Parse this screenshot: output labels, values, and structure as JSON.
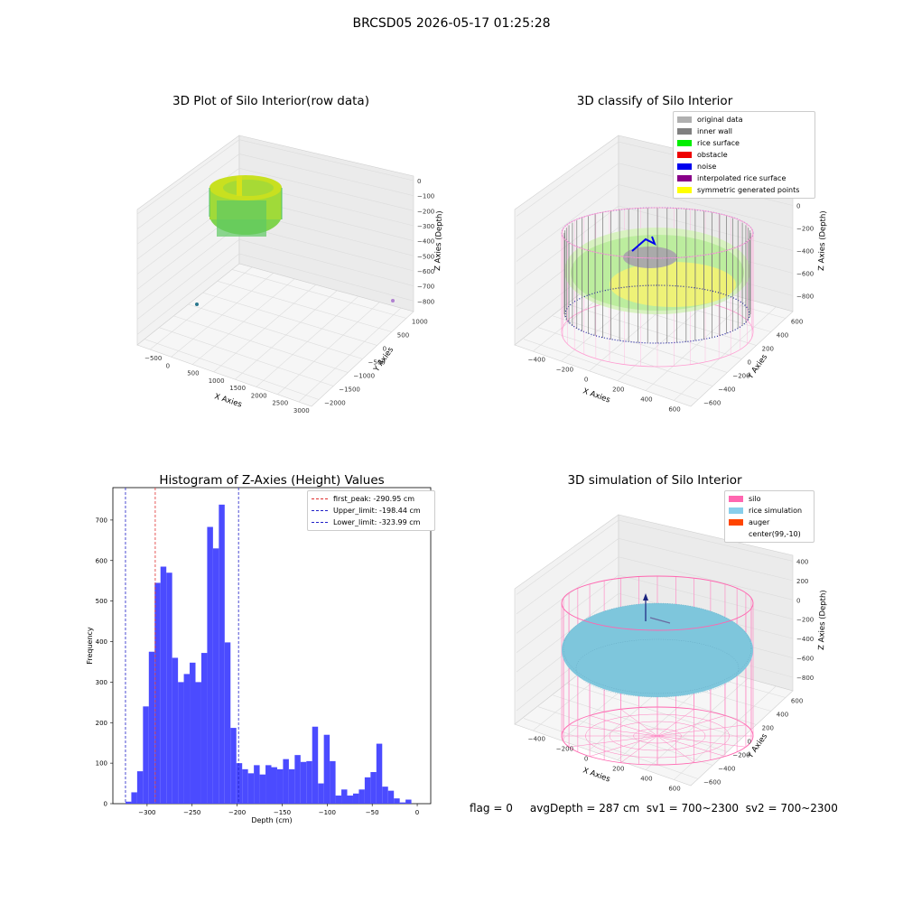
{
  "suptitle": "BRCSD05 2026-05-17 01:25:28",
  "footer": "flag = 0     avgDepth = 287 cm  sv1 = 700~2300  sv2 = 700~2300",
  "colors": {
    "histogram_bar": "#4b4bff",
    "first_peak_line": "#e03030",
    "limit_lines": "#2020c8",
    "silo_wire": "#ff66b0",
    "rice_surface": "#7ec6dc"
  },
  "chart_data": [
    {
      "type": "scatter3d",
      "title": "3D Plot of Silo Interior(row data)",
      "xlabel": "X Axies",
      "ylabel": "Y Axies",
      "zlabel": "Z Axies (Depth)",
      "xticks": [
        "−500",
        "0",
        "500",
        "1000",
        "1500",
        "2000",
        "2500",
        "3000"
      ],
      "yticks": [
        "−2000",
        "−1500",
        "−1000",
        "−500",
        "0",
        "500",
        "1000"
      ],
      "zticks": [
        "0",
        "−100",
        "−200",
        "−300",
        "−400",
        "−500",
        "−600",
        "−700",
        "−800"
      ]
    },
    {
      "type": "scatter3d",
      "title": "3D classify of Silo Interior",
      "xlabel": "X Axies",
      "ylabel": "Y Axies",
      "zlabel": "Z Axies (Depth)",
      "xticks": [
        "−400",
        "−200",
        "0",
        "200",
        "400",
        "600"
      ],
      "yticks": [
        "−600",
        "−400",
        "−200",
        "0",
        "200",
        "400",
        "600"
      ],
      "zticks": [
        "200",
        "0",
        "−200",
        "−400",
        "−600",
        "−800"
      ],
      "legend_position": "top-right",
      "legend": [
        {
          "label": "original data",
          "color": "#b0b0b0"
        },
        {
          "label": "inner wall",
          "color": "#808080"
        },
        {
          "label": "rice surface",
          "color": "#00ee00"
        },
        {
          "label": "obstacle",
          "color": "#ee0000"
        },
        {
          "label": "noise",
          "color": "#0000ee"
        },
        {
          "label": "interpolated rice surface",
          "color": "#880088"
        },
        {
          "label": "symmetric generated points",
          "color": "#ffff00"
        }
      ]
    },
    {
      "type": "bar",
      "title": "Histogram of Z-Axies (Height) Values",
      "xlabel": "Depth (cm)",
      "ylabel": "Frequency",
      "xlim": [
        -338,
        15
      ],
      "ylim": [
        0,
        780
      ],
      "xticks": [
        -300,
        -250,
        -200,
        -150,
        -100,
        -50,
        0
      ],
      "xtick_labels": [
        "−300",
        "−250",
        "−200",
        "−150",
        "−100",
        "−50",
        "0"
      ],
      "yticks": [
        0,
        100,
        200,
        300,
        400,
        500,
        600,
        700
      ],
      "bin_start": -324,
      "bin_width": 6.48,
      "values": [
        5,
        28,
        80,
        240,
        375,
        545,
        585,
        570,
        360,
        300,
        320,
        348,
        300,
        372,
        683,
        630,
        738,
        398,
        187,
        100,
        85,
        75,
        95,
        72,
        95,
        90,
        85,
        110,
        85,
        120,
        103,
        105,
        190,
        50,
        170,
        105,
        20,
        35,
        20,
        25,
        35,
        65,
        78,
        148,
        42,
        32,
        13,
        3,
        10
      ],
      "lines": [
        {
          "label": "first_peak: -290.95 cm",
          "x": -290.95,
          "color": "#e03030"
        },
        {
          "label": "Upper_limit: -198.44 cm",
          "x": -198.44,
          "color": "#2020c8"
        },
        {
          "label": "Lower_limit: -323.99 cm",
          "x": -323.99,
          "color": "#2020c8"
        }
      ],
      "legend_position": "top-right"
    },
    {
      "type": "surface3d",
      "title": "3D simulation of Silo Interior",
      "xlabel": "X Axies",
      "ylabel": "Y Axies",
      "zlabel": "Z Axies (Depth)",
      "xticks": [
        "−400",
        "−200",
        "0",
        "200",
        "400",
        "600"
      ],
      "yticks": [
        "−600",
        "−400",
        "−200",
        "0",
        "200",
        "400",
        "600"
      ],
      "zticks": [
        "400",
        "200",
        "0",
        "−200",
        "−400",
        "−600",
        "−800"
      ],
      "legend_position": "top-right",
      "legend": [
        {
          "label": "silo",
          "color": "#ff66b0"
        },
        {
          "label": "rice simulation",
          "color": "#87ceeb"
        },
        {
          "label": "auger",
          "color": "#ff4500"
        },
        {
          "label": "center(99,-10)",
          "color": ""
        }
      ]
    }
  ]
}
